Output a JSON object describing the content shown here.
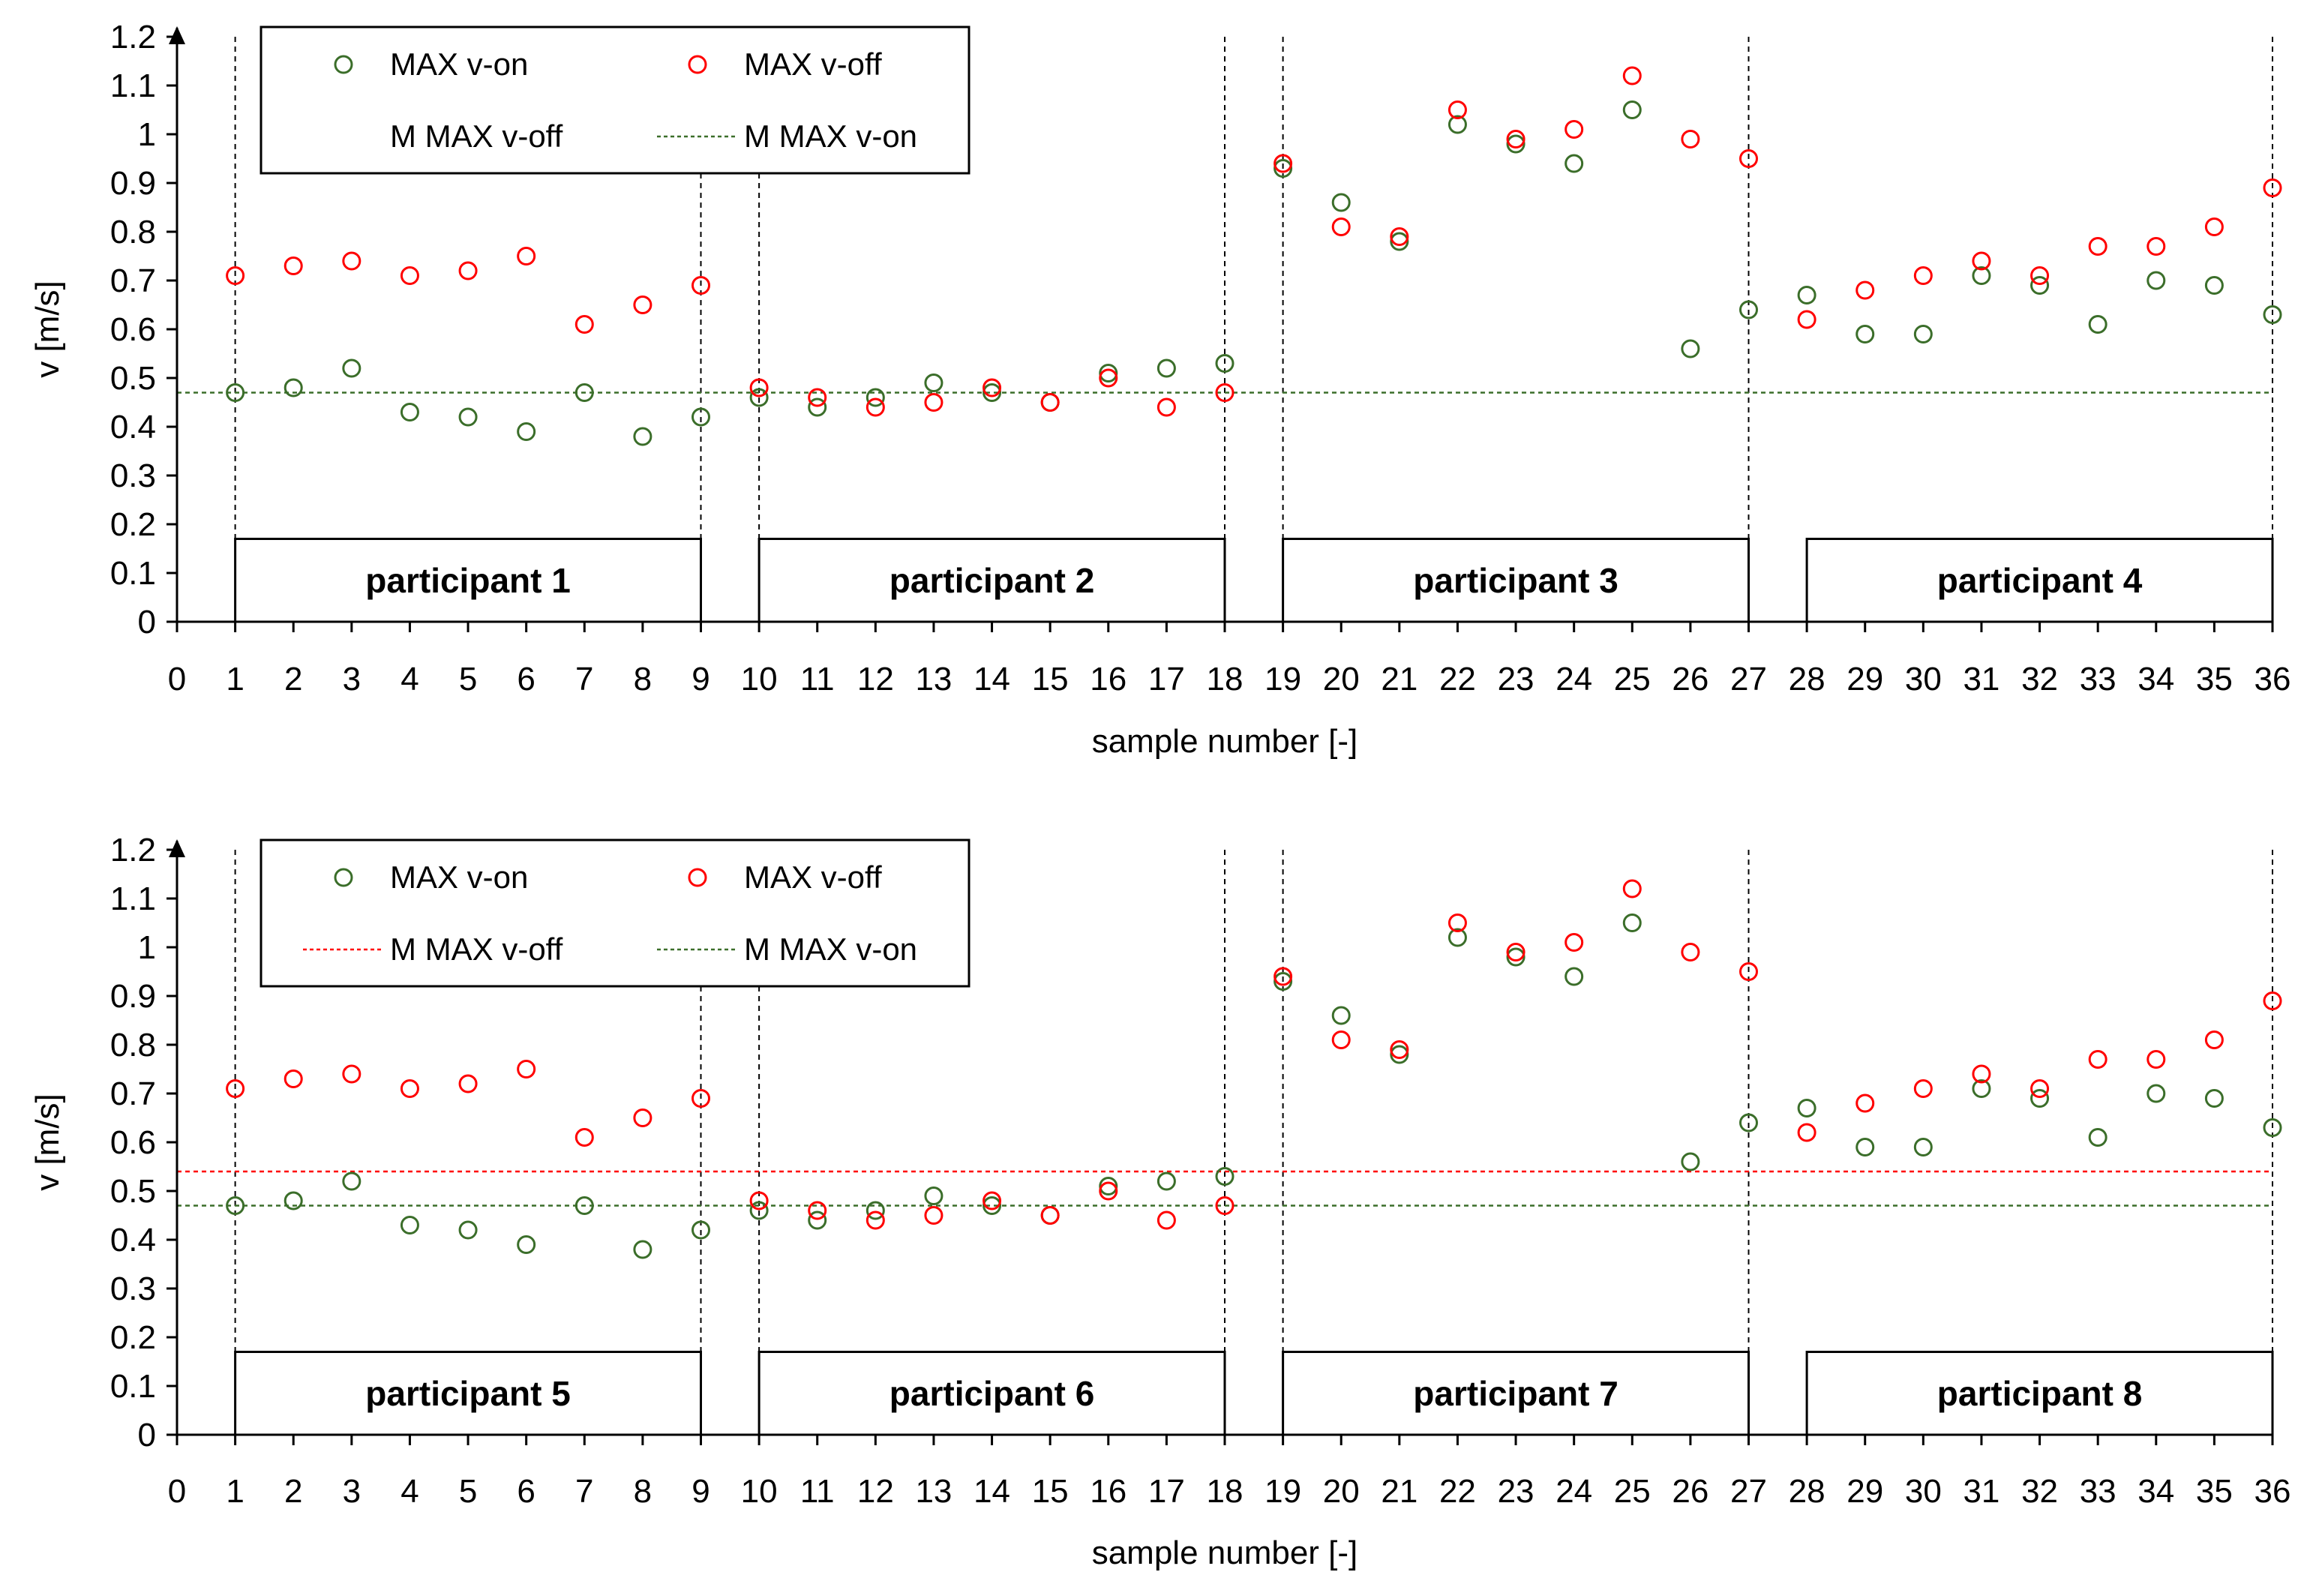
{
  "chart_data": [
    {
      "type": "scatter",
      "xlabel": "sample number [-]",
      "ylabel": "v [m/s]",
      "xlim": [
        0,
        36
      ],
      "ylim": [
        0,
        1.2
      ],
      "x_ticks": [
        "0",
        "1",
        "2",
        "3",
        "4",
        "5",
        "6",
        "7",
        "8",
        "9",
        "10",
        "11",
        "12",
        "13",
        "14",
        "15",
        "16",
        "17",
        "18",
        "19",
        "20",
        "21",
        "22",
        "23",
        "24",
        "25",
        "26",
        "27",
        "28",
        "29",
        "30",
        "31",
        "32",
        "33",
        "34",
        "35",
        "36"
      ],
      "y_ticks": [
        "0",
        "0.1",
        "0.2",
        "0.3",
        "0.4",
        "0.5",
        "0.6",
        "0.7",
        "0.8",
        "0.9",
        "1",
        "1.1",
        "1.2"
      ],
      "x": [
        1,
        2,
        3,
        4,
        5,
        6,
        7,
        8,
        9,
        10,
        11,
        12,
        13,
        14,
        15,
        16,
        17,
        18,
        19,
        20,
        21,
        22,
        23,
        24,
        25,
        26,
        27,
        28,
        29,
        30,
        31,
        32,
        33,
        34,
        35,
        36
      ],
      "series": [
        {
          "name": "MAX v-on",
          "color": "#3b6e2a",
          "marker": "circle-open",
          "values": [
            0.47,
            0.48,
            0.52,
            0.43,
            0.42,
            0.39,
            0.47,
            0.38,
            0.42,
            0.46,
            0.44,
            0.46,
            0.49,
            0.47,
            0.45,
            0.51,
            0.52,
            0.53,
            0.93,
            0.86,
            0.78,
            1.02,
            0.98,
            0.94,
            1.05,
            0.56,
            0.64,
            0.67,
            0.59,
            0.59,
            0.71,
            0.69,
            0.61,
            0.7,
            0.69,
            0.63
          ]
        },
        {
          "name": "MAX v-off",
          "color": "#ff0000",
          "marker": "circle-open",
          "values": [
            0.71,
            0.73,
            0.74,
            0.71,
            0.72,
            0.75,
            0.61,
            0.65,
            0.69,
            0.48,
            0.46,
            0.44,
            0.45,
            0.48,
            0.45,
            0.5,
            0.44,
            0.47,
            0.94,
            0.81,
            0.79,
            1.05,
            0.99,
            1.01,
            1.12,
            0.99,
            0.95,
            0.62,
            0.68,
            0.71,
            0.74,
            0.71,
            0.77,
            0.77,
            0.81,
            0.89
          ]
        }
      ],
      "mean_lines": [
        {
          "name": "M MAX v-off",
          "value": null,
          "color": "#ff0000",
          "visible": false
        },
        {
          "name": "M MAX v-on",
          "value": 0.47,
          "color": "#3b6e2a",
          "visible": true
        }
      ],
      "participants": [
        {
          "label": "participant 1",
          "from": 1,
          "to": 9
        },
        {
          "label": "participant 2",
          "from": 10,
          "to": 18
        },
        {
          "label": "participant 3",
          "from": 19,
          "to": 27
        },
        {
          "label": "participant 4",
          "from": 28,
          "to": 36
        }
      ],
      "dividers": [
        1,
        9,
        10,
        18,
        19,
        27,
        36
      ],
      "legend": "top-left"
    },
    {
      "type": "scatter",
      "xlabel": "sample number [-]",
      "ylabel": "v [m/s]",
      "xlim": [
        0,
        36
      ],
      "ylim": [
        0,
        1.2
      ],
      "x_ticks": [
        "0",
        "1",
        "2",
        "3",
        "4",
        "5",
        "6",
        "7",
        "8",
        "9",
        "10",
        "11",
        "12",
        "13",
        "14",
        "15",
        "16",
        "17",
        "18",
        "19",
        "20",
        "21",
        "22",
        "23",
        "24",
        "25",
        "26",
        "27",
        "28",
        "29",
        "30",
        "31",
        "32",
        "33",
        "34",
        "35",
        "36"
      ],
      "y_ticks": [
        "0",
        "0.1",
        "0.2",
        "0.3",
        "0.4",
        "0.5",
        "0.6",
        "0.7",
        "0.8",
        "0.9",
        "1",
        "1.1",
        "1.2"
      ],
      "x": [
        1,
        2,
        3,
        4,
        5,
        6,
        7,
        8,
        9,
        10,
        11,
        12,
        13,
        14,
        15,
        16,
        17,
        18,
        19,
        20,
        21,
        22,
        23,
        24,
        25,
        26,
        27,
        28,
        29,
        30,
        31,
        32,
        33,
        34,
        35,
        36
      ],
      "series": [
        {
          "name": "MAX v-on",
          "color": "#3b6e2a",
          "marker": "circle-open",
          "values": [
            0.47,
            0.48,
            0.52,
            0.43,
            0.42,
            0.39,
            0.47,
            0.38,
            0.42,
            0.46,
            0.44,
            0.46,
            0.49,
            0.47,
            0.45,
            0.51,
            0.52,
            0.53,
            0.93,
            0.86,
            0.78,
            1.02,
            0.98,
            0.94,
            1.05,
            0.56,
            0.64,
            0.67,
            0.59,
            0.59,
            0.71,
            0.69,
            0.61,
            0.7,
            0.69,
            0.63
          ]
        },
        {
          "name": "MAX v-off",
          "color": "#ff0000",
          "marker": "circle-open",
          "values": [
            0.71,
            0.73,
            0.74,
            0.71,
            0.72,
            0.75,
            0.61,
            0.65,
            0.69,
            0.48,
            0.46,
            0.44,
            0.45,
            0.48,
            0.45,
            0.5,
            0.44,
            0.47,
            0.94,
            0.81,
            0.79,
            1.05,
            0.99,
            1.01,
            1.12,
            0.99,
            0.95,
            0.62,
            0.68,
            0.71,
            0.74,
            0.71,
            0.77,
            0.77,
            0.81,
            0.89
          ]
        }
      ],
      "mean_lines": [
        {
          "name": "M MAX v-off",
          "value": 0.54,
          "color": "#ff0000",
          "visible": true
        },
        {
          "name": "M MAX v-on",
          "value": 0.47,
          "color": "#3b6e2a",
          "visible": true
        }
      ],
      "participants": [
        {
          "label": "participant 5",
          "from": 1,
          "to": 9
        },
        {
          "label": "participant 6",
          "from": 10,
          "to": 18
        },
        {
          "label": "participant 7",
          "from": 19,
          "to": 27
        },
        {
          "label": "participant 8",
          "from": 28,
          "to": 36
        }
      ],
      "dividers": [
        1,
        9,
        10,
        18,
        19,
        27,
        36
      ],
      "legend": "top-left"
    }
  ]
}
